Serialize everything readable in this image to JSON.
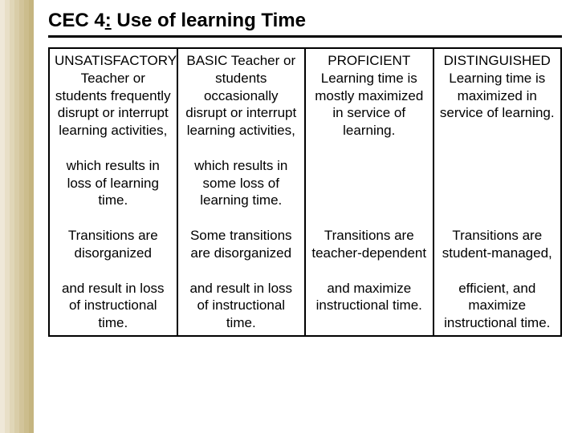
{
  "stripe_colors": [
    "#efe8d8",
    "#e8dfc7",
    "#e0d6b7",
    "#d9cda8",
    "#d2c49a",
    "#ccbd8d",
    "#c5b580"
  ],
  "title_prefix": "CEC 4",
  "title_colon_underlined": ":",
  "title_rest": " Use of learning Time",
  "columns": {
    "c0": {
      "p0": "UNSATISFACTORY Teacher or students frequently disrupt or interrupt learning activities,",
      "p1": "which results in loss of learning time.",
      "p2": "Transitions are disorganized",
      "p3": "and result in loss of instructional time."
    },
    "c1": {
      "p0": "BASIC Teacher or students occasionally disrupt or interrupt learning activities,",
      "p1": "which results in some loss of learning time.",
      "p2": "Some transitions are disorganized",
      "p3": "and result in loss of instructional time."
    },
    "c2": {
      "p0": "PROFICIENT Learning time is mostly maximized in service of learning.",
      "p1": "",
      "p2": "Transitions are teacher-dependent",
      "p3": "and maximize instructional time."
    },
    "c3": {
      "p0": "DISTINGUISHED Learning time is maximized in service of learning.",
      "p1": "",
      "p2": "Transitions are student-managed,",
      "p3": "efficient, and maximize instructional time."
    }
  }
}
